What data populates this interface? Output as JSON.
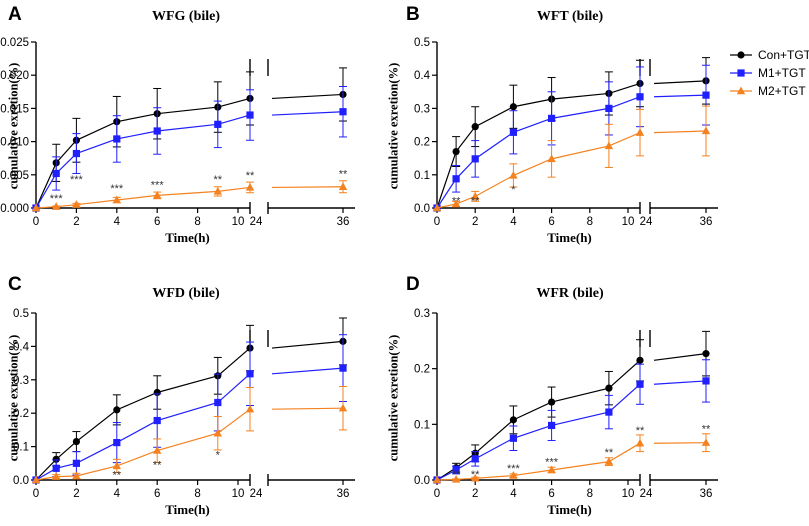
{
  "legend": {
    "position": "right",
    "entries": [
      {
        "name": "Con+TGT",
        "color": "#000000",
        "marker": "circle"
      },
      {
        "name": "M1+TGT",
        "color": "#1f1fff",
        "marker": "square"
      },
      {
        "name": "M2+TGT",
        "color": "#f58220",
        "marker": "triangle"
      }
    ]
  },
  "chart_data": [
    {
      "panel": "A",
      "type": "line",
      "title": "WFG (bile)",
      "xlabel": "Time(h)",
      "ylabel": "cumulative exretion(%)",
      "x": [
        0,
        1,
        2,
        4,
        6,
        9,
        24,
        36
      ],
      "xlim_left": [
        0,
        24
      ],
      "xlim_right": [
        24,
        36
      ],
      "xticks_left": [
        "0",
        "2",
        "4",
        "6",
        "8",
        "10",
        "24"
      ],
      "xticks_right": [
        "24",
        "36"
      ],
      "ylim": [
        0,
        0.025
      ],
      "yticks": [
        "0.000",
        "0.005",
        "0.010",
        "0.015",
        "0.020",
        "0.025"
      ],
      "series": [
        {
          "name": "Con+TGT",
          "values": [
            0,
            0.0068,
            0.0102,
            0.013,
            0.0142,
            0.0152,
            0.0165,
            0.0171
          ],
          "errors": [
            0,
            0.0028,
            0.0033,
            0.0038,
            0.0038,
            0.0038,
            0.004,
            0.004
          ]
        },
        {
          "name": "M1+TGT",
          "values": [
            0,
            0.0052,
            0.0082,
            0.0104,
            0.0116,
            0.0126,
            0.014,
            0.0145
          ],
          "errors": [
            0,
            0.0025,
            0.003,
            0.0035,
            0.0035,
            0.0035,
            0.0038,
            0.0038
          ]
        },
        {
          "name": "M2+TGT",
          "values": [
            0,
            0.0002,
            0.0005,
            0.0012,
            0.0019,
            0.0025,
            0.0031,
            0.0032
          ],
          "errors": [
            0,
            0.0001,
            0.0002,
            0.0004,
            0.0005,
            0.0007,
            0.0008,
            0.0009
          ]
        }
      ],
      "annotations": [
        {
          "x": 1,
          "text": "***",
          "y": 0.0009
        },
        {
          "x": 2,
          "text": "***",
          "y": 0.0038
        },
        {
          "x": 4,
          "text": "***",
          "y": 0.0024
        },
        {
          "x": 6,
          "text": "***",
          "y": 0.0029
        },
        {
          "x": 9,
          "text": "**",
          "y": 0.0038
        },
        {
          "x": 24,
          "text": "**",
          "y": 0.0044
        },
        {
          "x": 36,
          "text": "**",
          "y": 0.0046
        }
      ]
    },
    {
      "panel": "B",
      "type": "line",
      "title": "WFT (bile)",
      "xlabel": "Time(h)",
      "ylabel": "cumulative exretion(%)",
      "x": [
        0,
        1,
        2,
        4,
        6,
        9,
        24,
        36
      ],
      "xlim_left": [
        0,
        24
      ],
      "xlim_right": [
        24,
        36
      ],
      "xticks_left": [
        "0",
        "2",
        "4",
        "6",
        "8",
        "10",
        "24"
      ],
      "xticks_right": [
        "24",
        "36"
      ],
      "ylim": [
        0,
        0.5
      ],
      "yticks": [
        "0.0",
        "0.1",
        "0.2",
        "0.3",
        "0.4",
        "0.5"
      ],
      "series": [
        {
          "name": "Con+TGT",
          "values": [
            0,
            0.17,
            0.245,
            0.305,
            0.328,
            0.345,
            0.375,
            0.383
          ],
          "errors": [
            0,
            0.045,
            0.06,
            0.065,
            0.065,
            0.065,
            0.07,
            0.07
          ]
        },
        {
          "name": "M1+TGT",
          "values": [
            0,
            0.088,
            0.148,
            0.228,
            0.27,
            0.3,
            0.335,
            0.34
          ],
          "errors": [
            0,
            0.04,
            0.055,
            0.065,
            0.08,
            0.08,
            0.09,
            0.09
          ]
        },
        {
          "name": "M2+TGT",
          "values": [
            0,
            0.012,
            0.035,
            0.098,
            0.148,
            0.187,
            0.227,
            0.232
          ],
          "errors": [
            0,
            0.008,
            0.015,
            0.035,
            0.055,
            0.065,
            0.07,
            0.075
          ]
        }
      ],
      "annotations": [
        {
          "x": 1,
          "text": "**",
          "y": 0.01
        },
        {
          "x": 2,
          "text": "**",
          "y": 0.01
        },
        {
          "x": 4,
          "text": "*",
          "y": 0.045
        }
      ]
    },
    {
      "panel": "C",
      "type": "line",
      "title": "WFD (bile)",
      "xlabel": "Time(h)",
      "ylabel": "cumulative exretion(%)",
      "x": [
        0,
        1,
        2,
        4,
        6,
        9,
        24,
        36
      ],
      "xlim_left": [
        0,
        24
      ],
      "xlim_right": [
        24,
        36
      ],
      "xticks_left": [
        "0",
        "2",
        "4",
        "6",
        "8",
        "10",
        "24"
      ],
      "xticks_right": [
        "24",
        "36"
      ],
      "ylim": [
        0,
        0.5
      ],
      "yticks": [
        "0.0",
        "0.1",
        "0.2",
        "0.3",
        "0.4",
        "0.5"
      ],
      "series": [
        {
          "name": "Con+TGT",
          "values": [
            0,
            0.062,
            0.115,
            0.21,
            0.262,
            0.312,
            0.395,
            0.415
          ],
          "errors": [
            0,
            0.02,
            0.03,
            0.045,
            0.05,
            0.055,
            0.068,
            0.07
          ]
        },
        {
          "name": "M1+TGT",
          "values": [
            0,
            0.035,
            0.05,
            0.112,
            0.178,
            0.232,
            0.318,
            0.335
          ],
          "errors": [
            0,
            0.025,
            0.035,
            0.06,
            0.08,
            0.085,
            0.095,
            0.1
          ]
        },
        {
          "name": "M2+TGT",
          "values": [
            0,
            0.01,
            0.012,
            0.042,
            0.088,
            0.14,
            0.212,
            0.215
          ],
          "errors": [
            0,
            0.006,
            0.008,
            0.02,
            0.035,
            0.05,
            0.065,
            0.065
          ]
        }
      ],
      "annotations": [
        {
          "x": 4,
          "text": "**",
          "y": 0.005
        },
        {
          "x": 6,
          "text": "**",
          "y": 0.035
        },
        {
          "x": 9,
          "text": "*",
          "y": 0.065
        }
      ]
    },
    {
      "panel": "D",
      "type": "line",
      "title": "WFR (bile)",
      "xlabel": "Time(h)",
      "ylabel": "cumulative exretion(%)",
      "x": [
        0,
        1,
        2,
        4,
        6,
        9,
        24,
        36
      ],
      "xlim_left": [
        0,
        24
      ],
      "xlim_right": [
        24,
        36
      ],
      "xticks_left": [
        "0",
        "2",
        "4",
        "6",
        "8",
        "10",
        "24"
      ],
      "xticks_right": [
        "24",
        "36"
      ],
      "ylim": [
        0,
        0.3
      ],
      "yticks": [
        "0.0",
        "0.1",
        "0.2",
        "0.3"
      ],
      "series": [
        {
          "name": "Con+TGT",
          "values": [
            0,
            0.022,
            0.048,
            0.108,
            0.14,
            0.165,
            0.215,
            0.227
          ],
          "errors": [
            0,
            0.008,
            0.015,
            0.025,
            0.027,
            0.03,
            0.037,
            0.04
          ]
        },
        {
          "name": "M1+TGT",
          "values": [
            0,
            0.018,
            0.038,
            0.075,
            0.098,
            0.122,
            0.172,
            0.178
          ],
          "errors": [
            0,
            0.007,
            0.013,
            0.022,
            0.027,
            0.03,
            0.036,
            0.038
          ]
        },
        {
          "name": "M2+TGT",
          "values": [
            0,
            0.001,
            0.003,
            0.008,
            0.018,
            0.033,
            0.066,
            0.067
          ],
          "errors": [
            0,
            0.001,
            0.002,
            0.003,
            0.005,
            0.007,
            0.015,
            0.016
          ]
        }
      ],
      "annotations": [
        {
          "x": 1,
          "text": "**",
          "y": 0.004
        },
        {
          "x": 2,
          "text": "**",
          "y": 0.004
        },
        {
          "x": 4,
          "text": "***",
          "y": 0.014
        },
        {
          "x": 6,
          "text": "***",
          "y": 0.026
        },
        {
          "x": 9,
          "text": "**",
          "y": 0.043
        },
        {
          "x": 24,
          "text": "**",
          "y": 0.083
        },
        {
          "x": 36,
          "text": "**",
          "y": 0.085
        }
      ]
    }
  ]
}
